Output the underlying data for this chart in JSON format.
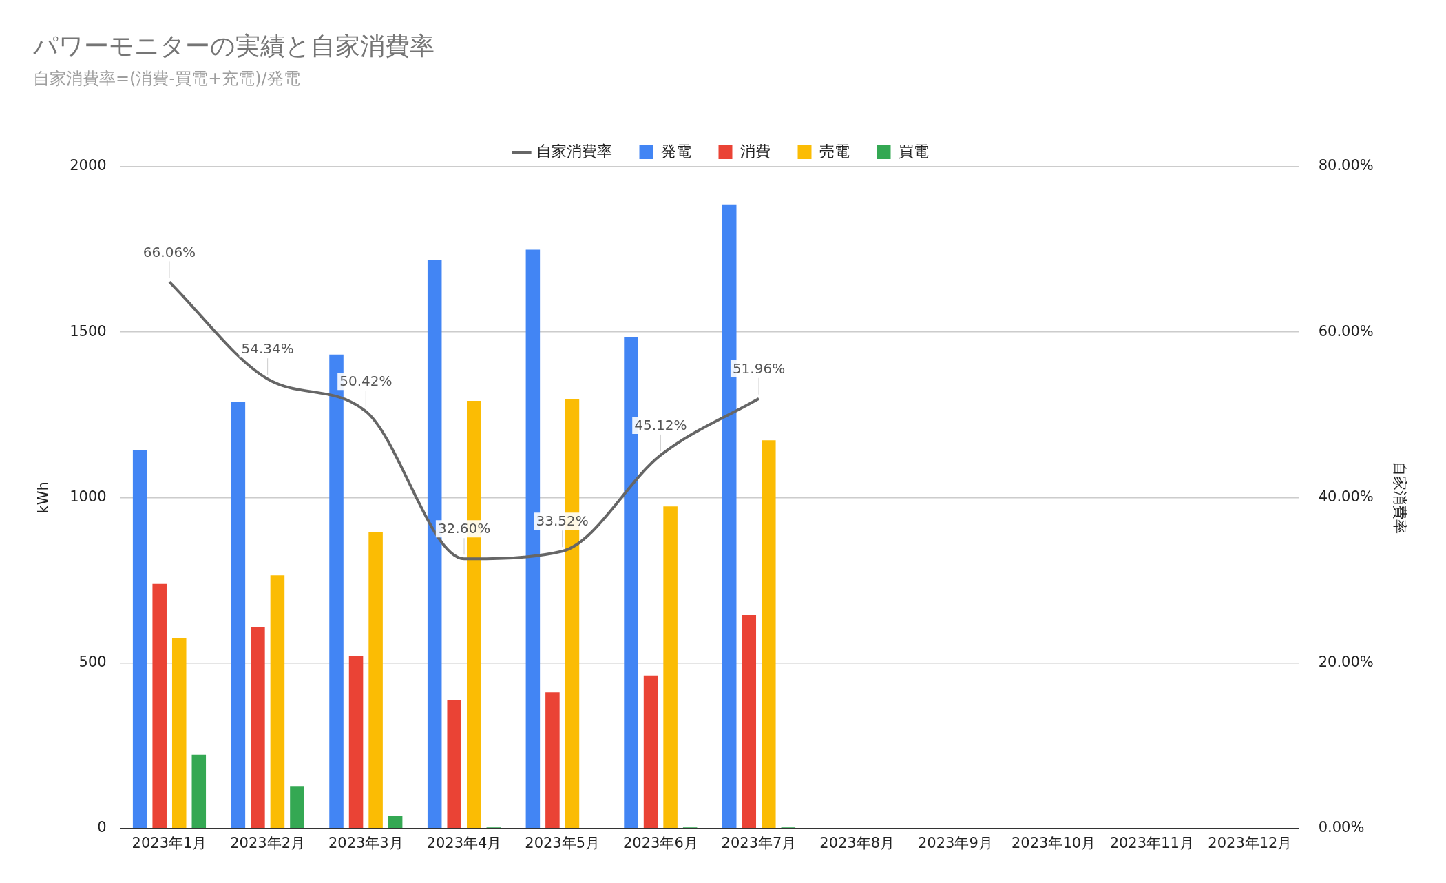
{
  "chart_data": {
    "type": "bar",
    "title": "パワーモニターの実績と自家消費率",
    "subtitle": "自家消費率=(消費-買電+充電)/発電",
    "ylabel": "kWh",
    "y2label": "自家消費率",
    "categories": [
      "2023年1月",
      "2023年2月",
      "2023年3月",
      "2023年4月",
      "2023年5月",
      "2023年6月",
      "2023年7月",
      "2023年8月",
      "2023年9月",
      "2023年10月",
      "2023年11月",
      "2023年12月"
    ],
    "series": [
      {
        "name": "発電",
        "color": "#4285f4",
        "values": [
          1144,
          1290,
          1432,
          1718,
          1749,
          1484,
          1886,
          null,
          null,
          null,
          null,
          null
        ]
      },
      {
        "name": "消費",
        "color": "#ea4335",
        "values": [
          739,
          608,
          522,
          388,
          411,
          462,
          645,
          null,
          null,
          null,
          null,
          null
        ]
      },
      {
        "name": "売電",
        "color": "#fbbc04",
        "values": [
          576,
          765,
          896,
          1292,
          1298,
          973,
          1173,
          null,
          null,
          null,
          null,
          null
        ]
      },
      {
        "name": "買電",
        "color": "#34a853",
        "values": [
          223,
          128,
          37,
          3,
          0,
          3,
          3,
          null,
          null,
          null,
          null,
          null
        ]
      },
      {
        "name": "自家消費率",
        "type": "line",
        "axis": "y2",
        "color": "#666666",
        "values": [
          66.06,
          54.34,
          50.42,
          32.6,
          33.52,
          45.12,
          51.96,
          null,
          null,
          null,
          null,
          null
        ],
        "value_labels": [
          "66.06%",
          "54.34%",
          "50.42%",
          "32.60%",
          "33.52%",
          "45.12%",
          "51.96%",
          null,
          null,
          null,
          null,
          null
        ]
      }
    ],
    "ylim": [
      0,
      2000
    ],
    "yticks": [
      0,
      500,
      1000,
      1500,
      2000
    ],
    "y2lim": [
      0,
      80
    ],
    "y2ticks": [
      {
        "value": 0,
        "label": "0.00%"
      },
      {
        "value": 20,
        "label": "20.00%"
      },
      {
        "value": 40,
        "label": "40.00%"
      },
      {
        "value": 60,
        "label": "60.00%"
      },
      {
        "value": 80,
        "label": "80.00%"
      }
    ],
    "grid": "y",
    "legend": "top"
  }
}
